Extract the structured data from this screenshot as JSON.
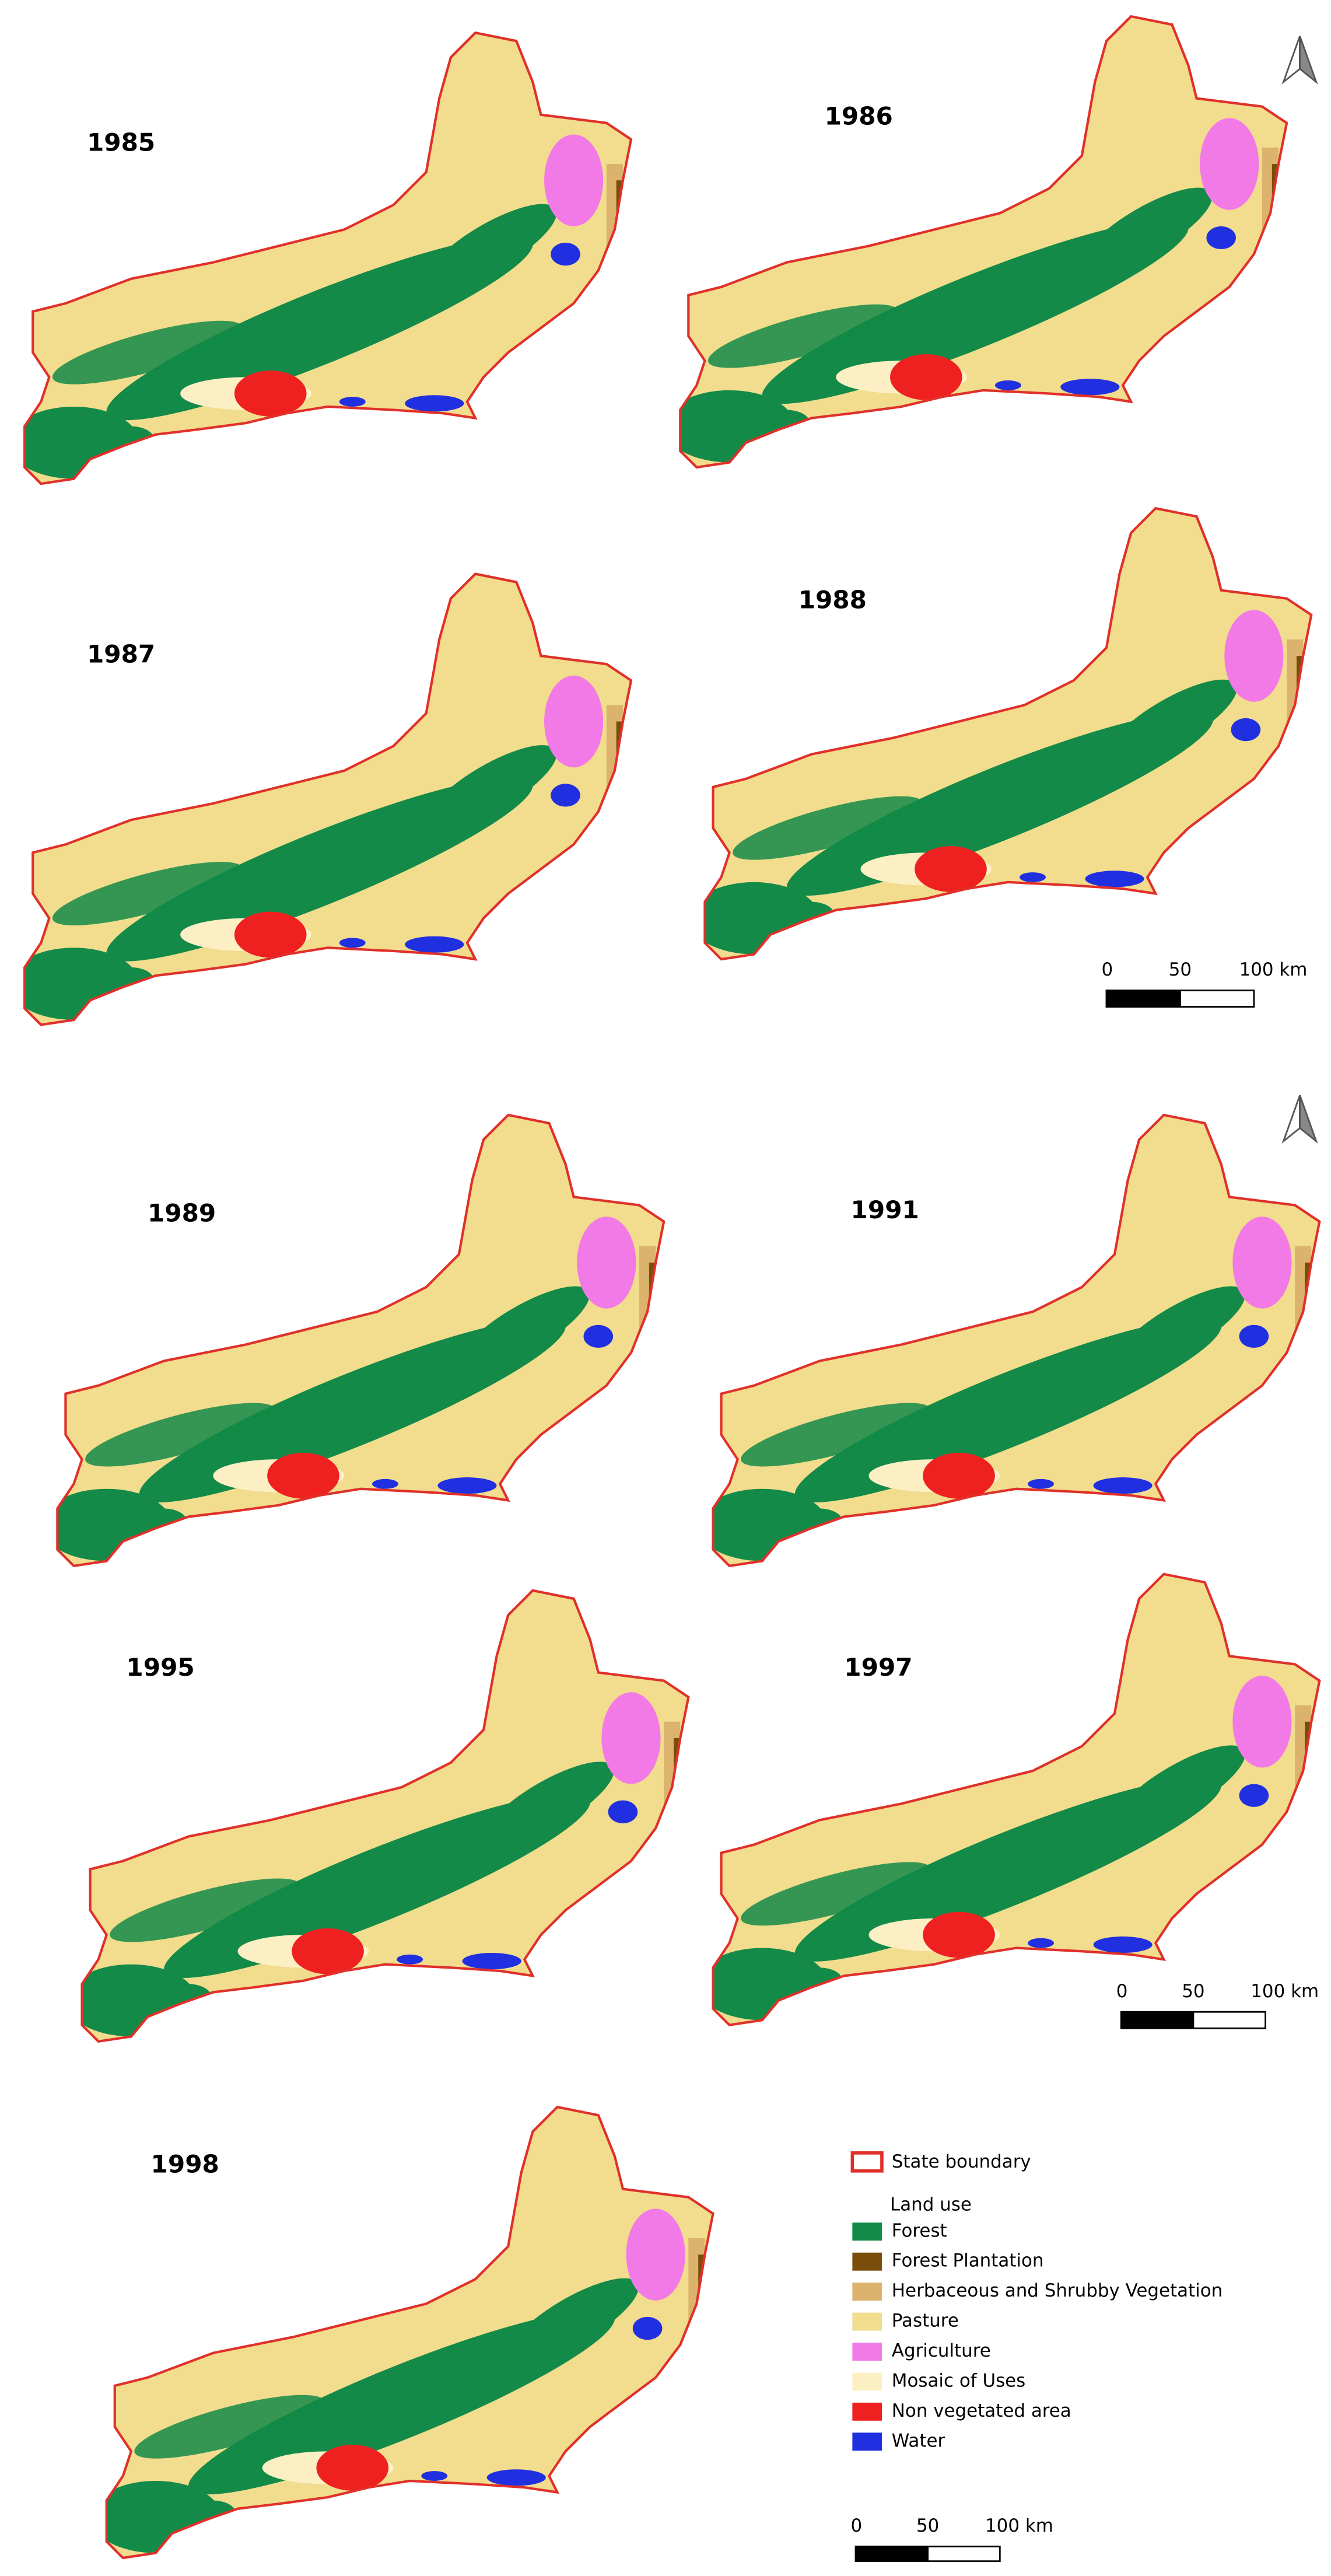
{
  "panels": [
    {
      "year": "1985"
    },
    {
      "year": "1986"
    },
    {
      "year": "1987"
    },
    {
      "year": "1988"
    },
    {
      "year": "1989"
    },
    {
      "year": "1991"
    },
    {
      "year": "1995"
    },
    {
      "year": "1997"
    },
    {
      "year": "1998"
    }
  ],
  "scale_bars": [
    {
      "labels": [
        "0",
        "50",
        "100 km"
      ]
    },
    {
      "labels": [
        "0",
        "50",
        "100 km"
      ]
    },
    {
      "labels": [
        "0",
        "50",
        "100 km"
      ]
    }
  ],
  "legend": {
    "boundary": {
      "label": "State boundary",
      "color": "#e0302a"
    },
    "group_title": "Land use",
    "items": [
      {
        "label": "Forest",
        "color": "#138a48"
      },
      {
        "label": "Forest Plantation",
        "color": "#7a4e0a"
      },
      {
        "label": "Herbaceous and Shrubby Vegetation",
        "color": "#dcb36c"
      },
      {
        "label": "Pasture",
        "color": "#f2dc8e"
      },
      {
        "label": "Agriculture",
        "color": "#f27ae6"
      },
      {
        "label": "Mosaic of Uses",
        "color": "#fcefc4"
      },
      {
        "label": "Non vegetated area",
        "color": "#ee2020"
      },
      {
        "label": "Water",
        "color": "#2030e0"
      }
    ]
  }
}
